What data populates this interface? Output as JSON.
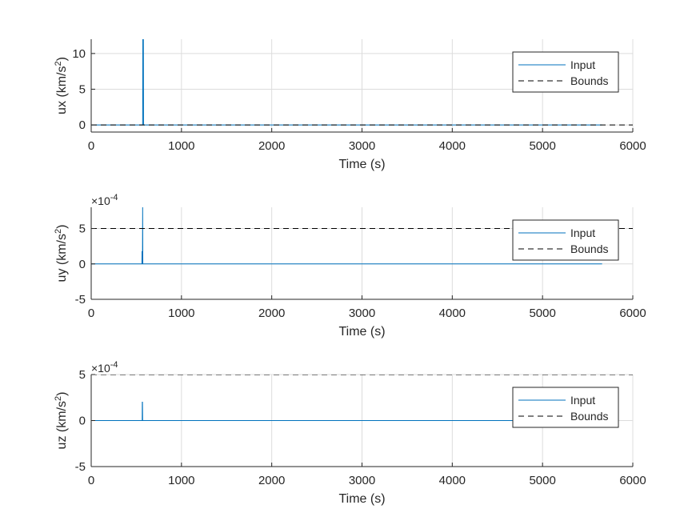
{
  "figure": {
    "colors": {
      "input": "#0072BD",
      "bounds": "#000000",
      "grid": "#DCDCDC",
      "axis": "#262626",
      "background": "#FFFFFF"
    }
  },
  "chart_data": [
    {
      "type": "line",
      "xlabel": "Time (s)",
      "ylabel": "ux (km/s",
      "ylabel_sup": "2",
      "ylabel_end": ")",
      "exponent_label": "",
      "exponent_sup": "",
      "xlim": [
        0,
        6000
      ],
      "ylim": [
        -1,
        12
      ],
      "xticks": [
        0,
        1000,
        2000,
        3000,
        4000,
        5000,
        6000
      ],
      "yticks": [
        0,
        5,
        10
      ],
      "xtick_labels": [
        "0",
        "1000",
        "2000",
        "3000",
        "4000",
        "5000",
        "6000"
      ],
      "ytick_labels": [
        "0",
        "5",
        "10"
      ],
      "grid": true,
      "legend_position": "top-right",
      "series": [
        {
          "name": "Input",
          "style": "solid",
          "x": [
            0,
            570,
            572,
            575,
            578,
            580,
            5660
          ],
          "y": [
            0,
            0,
            12,
            12,
            12,
            0,
            0
          ]
        },
        {
          "name": "Bounds",
          "style": "dashed",
          "x": [
            0,
            6000
          ],
          "y": [
            0,
            0
          ]
        }
      ]
    },
    {
      "type": "line",
      "xlabel": "Time (s)",
      "ylabel": "uy (km/s",
      "ylabel_sup": "2",
      "ylabel_end": ")",
      "exponent_label": "×10",
      "exponent_sup": "-4",
      "xlim": [
        0,
        6000
      ],
      "ylim": [
        -5,
        8
      ],
      "xticks": [
        0,
        1000,
        2000,
        3000,
        4000,
        5000,
        6000
      ],
      "yticks": [
        -5,
        0,
        5
      ],
      "xtick_labels": [
        "0",
        "1000",
        "2000",
        "3000",
        "4000",
        "5000",
        "6000"
      ],
      "ytick_labels": [
        "-5",
        "0",
        "5"
      ],
      "grid": true,
      "legend_position": "top-right",
      "series": [
        {
          "name": "Input",
          "style": "solid",
          "x": [
            0,
            562,
            563,
            565,
            568,
            570,
            572,
            575,
            5660
          ],
          "y": [
            0,
            0,
            1.8,
            0,
            0,
            8,
            0,
            0,
            0
          ]
        },
        {
          "name": "Bounds",
          "style": "dashed",
          "x": [
            0,
            6000
          ],
          "y": [
            5,
            5
          ]
        }
      ]
    },
    {
      "type": "line",
      "xlabel": "Time (s)",
      "ylabel": "uz (km/s",
      "ylabel_sup": "2",
      "ylabel_end": ")",
      "exponent_label": "×10",
      "exponent_sup": "-4",
      "xlim": [
        0,
        6000
      ],
      "ylim": [
        -5,
        5
      ],
      "xticks": [
        0,
        1000,
        2000,
        3000,
        4000,
        5000,
        6000
      ],
      "yticks": [
        -5,
        0,
        5
      ],
      "xtick_labels": [
        "0",
        "1000",
        "2000",
        "3000",
        "4000",
        "5000",
        "6000"
      ],
      "ytick_labels": [
        "-5",
        "0",
        "5"
      ],
      "grid": true,
      "legend_position": "top-right",
      "series": [
        {
          "name": "Input",
          "style": "solid",
          "x": [
            0,
            565,
            566,
            568,
            570,
            5660
          ],
          "y": [
            0,
            0,
            2,
            2,
            0,
            0
          ]
        },
        {
          "name": "Bounds",
          "style": "dashed",
          "x": [
            0,
            6000
          ],
          "y": [
            5,
            5
          ]
        }
      ]
    }
  ]
}
